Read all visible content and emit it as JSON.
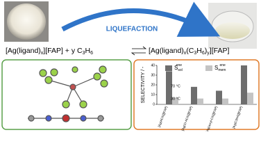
{
  "scheme": {
    "label": "LIQUEFACTION",
    "reactant": [
      "[Ag(ligand)",
      "x",
      "][FAP]  +  y C",
      "3",
      "H",
      "6"
    ],
    "product": [
      "[Ag(ligand)",
      "x",
      "(C",
      "3",
      "H",
      "6",
      ")",
      "y",
      "][FAP]"
    ]
  },
  "chart_data": {
    "type": "bar",
    "y_label": "SELECTIVITY / -",
    "categories": [
      "[Ag(ACN)][FAP]",
      "[Ag(Cl-ACN)][FAP]",
      "[Ag(acryl-CN)][FAP]",
      "[Ag(C3H4)][FAP]"
    ],
    "series": [
      {
        "name": "S",
        "name_sup": "ene",
        "name_sub": "sol",
        "color": "#6d6d6d",
        "values": [
          34,
          18,
          14,
          40
        ]
      },
      {
        "name": "S",
        "name_sup": "ene",
        "name_sub": "mem",
        "color": "#c4c4c4",
        "values": [
          7,
          6,
          6,
          12
        ]
      }
    ],
    "annotations": [
      "70 °C",
      "30 °C"
    ],
    "ylim": [
      0,
      40
    ],
    "yticks": [
      0,
      10,
      20,
      30,
      40
    ]
  }
}
